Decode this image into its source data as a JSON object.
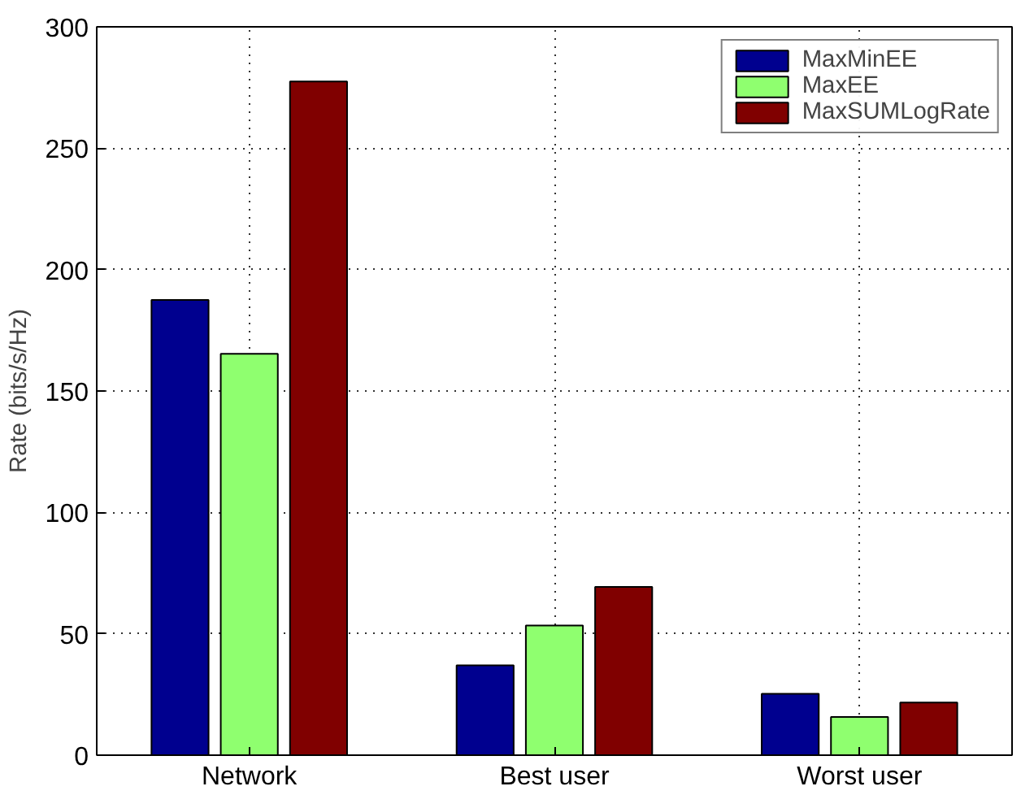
{
  "chart_data": {
    "type": "bar",
    "ylabel": "Rate (bits/s/Hz)",
    "categories": [
      "Network",
      "Best user",
      "Worst user"
    ],
    "series": [
      {
        "name": "MaxMinEE",
        "color": "#00008f",
        "values": [
          187.5,
          37,
          25.3
        ]
      },
      {
        "name": "MaxEE",
        "color": "#8fff6f",
        "values": [
          165.3,
          53.4,
          15.7
        ]
      },
      {
        "name": "MaxSUMLogRate",
        "color": "#800000",
        "values": [
          277.5,
          69.3,
          21.7
        ]
      }
    ],
    "ylim": [
      0,
      300
    ],
    "yticks": [
      0,
      50,
      100,
      150,
      200,
      250,
      300
    ],
    "grid": true,
    "legend": "top right"
  }
}
